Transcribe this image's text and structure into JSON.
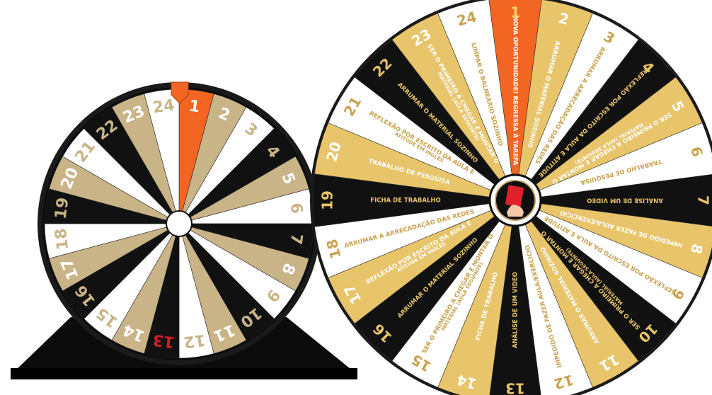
{
  "small_wheel": {
    "numbers": [
      "1",
      "2",
      "3",
      "4",
      "5",
      "6",
      "7",
      "8",
      "9",
      "10",
      "11",
      "12",
      "13",
      "14",
      "15",
      "16",
      "17",
      "18",
      "19",
      "20",
      "21",
      "22",
      "23",
      "24"
    ],
    "colors": [
      "orange",
      "gold",
      "white",
      "black",
      "gold",
      "white",
      "black",
      "gold",
      "white",
      "black",
      "gold",
      "white",
      "black",
      "gold",
      "white",
      "black",
      "gold",
      "white",
      "black",
      "gold",
      "white",
      "black",
      "gold",
      "white"
    ]
  },
  "big_wheel": {
    "segments": [
      {
        "number": "1",
        "label": "NOVA OPORTUNIDADE! REGRESSA À TAREFA",
        "color": "orange"
      },
      {
        "number": "2",
        "label": "ARRUMAR O MATERIAL SOZINHO",
        "color": "gold"
      },
      {
        "number": "3",
        "label": "ARRUMAR A ARRECADAÇÃO DAS REDES",
        "color": "white"
      },
      {
        "number": "4",
        "label": "REFLEXÃO POR ESCRITO DA AULA E ATITUDE",
        "color": "black"
      },
      {
        "number": "5",
        "label": "SER O PRIMEIRO A CHEGAR E MONTAR O MATERIAL (AULA SEGUINTE)",
        "color": "gold"
      },
      {
        "number": "6",
        "label": "TRABALHO DE PESQUISA",
        "color": "white"
      },
      {
        "number": "7",
        "label": "ANÁLISE DE UM VIDEO",
        "color": "black"
      },
      {
        "number": "8",
        "label": "IMPEDIDO DE FAZER AULA/EXERCÍCIO",
        "color": "gold"
      },
      {
        "number": "9",
        "label": "REFLEXÃO POR ESCRITO DA AULA E ATITUDE",
        "color": "white"
      },
      {
        "number": "10",
        "label": "SER O PRIMEIRO A CHEGAR E MONTAR O MATERIAL (AULA SEGUINTE)",
        "color": "black"
      },
      {
        "number": "11",
        "label": "ARRUMAR O MATERIAL SOZINHO",
        "color": "gold"
      },
      {
        "number": "12",
        "label": "IMPEDIDO DE FAZER AULA/EXERCÍCIO",
        "color": "white"
      },
      {
        "number": "13",
        "label": "ANÁLISE DE UM VIDEO",
        "color": "black"
      },
      {
        "number": "14",
        "label": "FICHA DE TRABALHO",
        "color": "gold"
      },
      {
        "number": "15",
        "label": "SER O PRIMEIRO A CHEGAR E MONTAR O MATERIAL (AULA SEGUINTE)",
        "color": "white"
      },
      {
        "number": "16",
        "label": "ARRUMAR O MATERIAL SOZINHO",
        "color": "black"
      },
      {
        "number": "17",
        "label": "REFLEXÃO POR ESCRITO DA AULA E ATITUDE EM INGLÊS",
        "color": "gold"
      },
      {
        "number": "18",
        "label": "ARRUMAR A ARRECADAÇÃO DAS REDES",
        "color": "white"
      },
      {
        "number": "19",
        "label": "FICHA DE TRABALHO",
        "color": "black"
      },
      {
        "number": "20",
        "label": "TRABALHO DE PESQUISA",
        "color": "gold"
      },
      {
        "number": "21",
        "label": "REFLEXÃO POR ESCRITO DA AULA E ATITUDE EM INGLÊS",
        "color": "white"
      },
      {
        "number": "22",
        "label": "ARRUMAR O MATERIAL SOZINHO",
        "color": "black"
      },
      {
        "number": "23",
        "label": "SER O PRIMEIRO A CHEGAR E MONTAR O MATERIAL (AULA SEGUINTE)",
        "color": "gold"
      },
      {
        "number": "24",
        "label": "LIMPAR O BALNEÁRIO SOZINHO",
        "color": "white"
      }
    ],
    "center_icon": "red-card-hand-icon"
  },
  "palette": {
    "orange": "#f26522",
    "gold": "#e8c46a",
    "gold_small": "#c9b487",
    "black": "#111111",
    "white": "#ffffff",
    "rim": "#1a1a1a",
    "stand": "#0d0d0d",
    "pointer": "#f26522",
    "card": "#e0202a",
    "num13": "#d11f26"
  }
}
